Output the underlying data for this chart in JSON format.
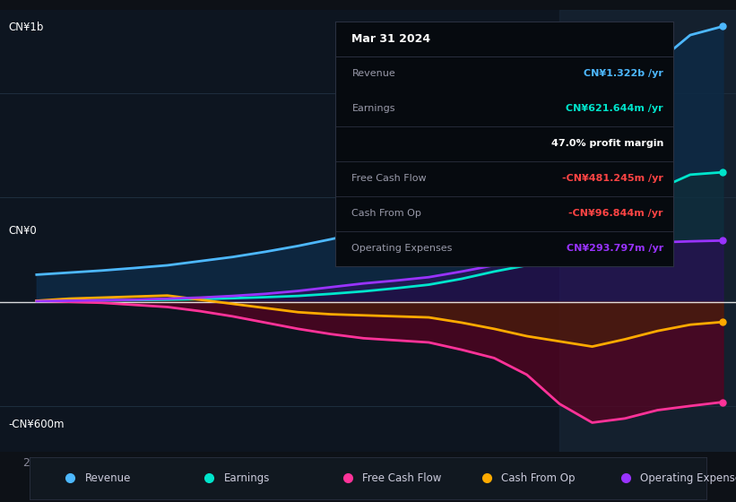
{
  "background_color": "#0d1117",
  "plot_bg_color": "#0d1520",
  "title": "Mar 31 2024",
  "ylabel_top": "CN¥1b",
  "ylabel_bottom": "-CN¥600m",
  "ylabel_zero": "CN¥0",
  "revenue_color": "#4db8ff",
  "earnings_color": "#00e5cc",
  "free_cash_flow_color": "#ff3399",
  "cash_from_op_color": "#ffaa00",
  "operating_expenses_color": "#9933ff",
  "legend_items": [
    {
      "label": "Revenue",
      "color": "#4db8ff"
    },
    {
      "label": "Earnings",
      "color": "#00e5cc"
    },
    {
      "label": "Free Cash Flow",
      "color": "#ff3399"
    },
    {
      "label": "Cash From Op",
      "color": "#ffaa00"
    },
    {
      "label": "Operating Expenses",
      "color": "#9933ff"
    }
  ],
  "tooltip_title": "Mar 31 2024",
  "tooltip_rows": [
    {
      "label": "Revenue",
      "value": "CN¥1.322b /yr",
      "value_color": "#4db8ff",
      "sep_before": true
    },
    {
      "label": "Earnings",
      "value": "CN¥621.644m /yr",
      "value_color": "#00e5cc",
      "sep_before": false
    },
    {
      "label": "",
      "value": "47.0% profit margin",
      "value_color": "#ffffff",
      "sep_before": true
    },
    {
      "label": "Free Cash Flow",
      "value": "-CN¥481.245m /yr",
      "value_color": "#ff4444",
      "sep_before": true
    },
    {
      "label": "Cash From Op",
      "value": "-CN¥96.844m /yr",
      "value_color": "#ff4444",
      "sep_before": true
    },
    {
      "label": "Operating Expenses",
      "value": "CN¥293.797m /yr",
      "value_color": "#9933ff",
      "sep_before": true
    }
  ]
}
